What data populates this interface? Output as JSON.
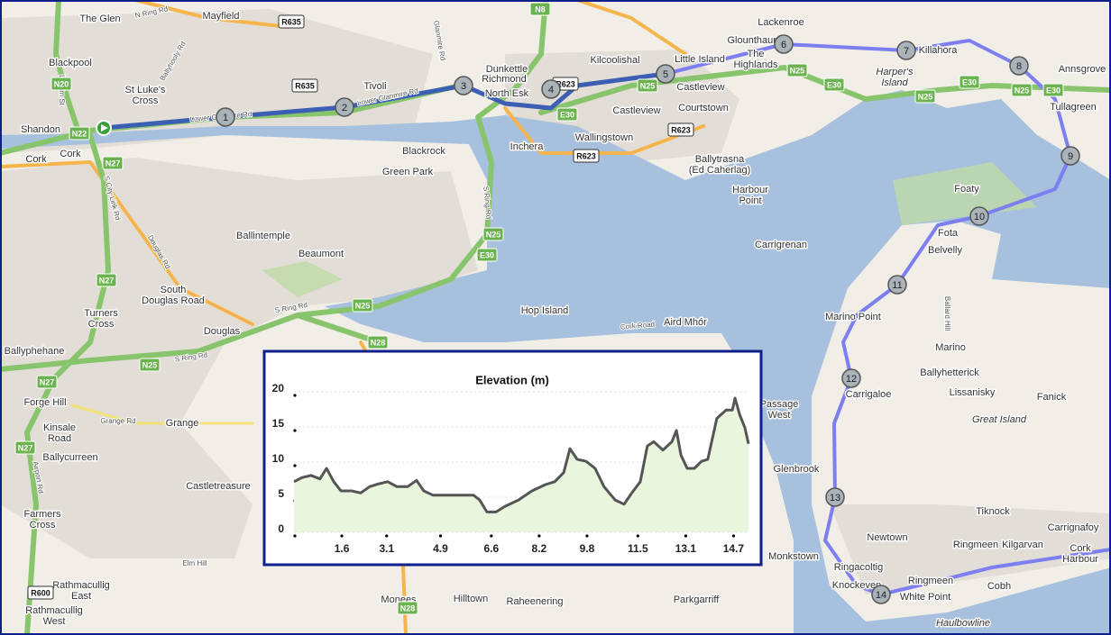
{
  "map": {
    "places": [
      [
        "The Glen"
      ],
      [
        "Mayfield"
      ],
      [
        "Blackpool"
      ],
      [
        "St Luke's",
        "Cross"
      ],
      [
        "Tivoli"
      ],
      [
        "Dunkettle"
      ],
      [
        "Richmond"
      ],
      [
        "North Esk"
      ],
      [
        "Kilcoolishal"
      ],
      [
        "Little Island"
      ],
      [
        "Glounthaune"
      ],
      [
        "Lackenroe"
      ],
      [
        "The",
        "Highlands"
      ],
      [
        "Castleview"
      ],
      [
        "Courtstown"
      ],
      [
        "Castleview"
      ],
      [
        "Wallingstown"
      ],
      [
        "Inchera"
      ],
      [
        "Killahora"
      ],
      [
        "Annsgrove"
      ],
      [
        "Tullagreen"
      ],
      [
        "Shandon"
      ],
      [
        "Cork"
      ],
      [
        "Cork"
      ],
      [
        "Blackrock"
      ],
      [
        "Green Park"
      ],
      [
        "Ballytrasna",
        "(Ed Caherlag)"
      ],
      [
        "Harbour",
        "Point"
      ],
      [
        "Foaty"
      ],
      [
        "Fota"
      ],
      [
        "Belvelly"
      ],
      [
        "Carrigrenan"
      ],
      [
        "Ballintemple"
      ],
      [
        "Beaumont"
      ],
      [
        "South",
        "Douglas Road"
      ],
      [
        "Turners",
        "Cross"
      ],
      [
        "Hop Island"
      ],
      [
        "Aird Mhór"
      ],
      [
        "Marino Point"
      ],
      [
        "Marino"
      ],
      [
        "Ballyhetterick"
      ],
      [
        "Lissanisky"
      ],
      [
        "Fanick"
      ],
      [
        "Great Island"
      ],
      [
        "Ballyphehane"
      ],
      [
        "Douglas"
      ],
      [
        "Forge Hill"
      ],
      [
        "Kinsale",
        "Road"
      ],
      [
        "Grange"
      ],
      [
        "Ballycurreen"
      ],
      [
        "Castletreasure"
      ],
      [
        "Farmers",
        "Cross"
      ],
      [
        "Passage",
        "West"
      ],
      [
        "Glenbrook"
      ],
      [
        "Carrigaloe"
      ],
      [
        "Monkstown"
      ],
      [
        "Tiknock"
      ],
      [
        "Carrignafoy"
      ],
      [
        "Newtown"
      ],
      [
        "Ringmeen"
      ],
      [
        "Kilgarvan"
      ],
      [
        "Cork",
        "Harbour"
      ],
      [
        "Ringacoltig"
      ],
      [
        "Knockeven"
      ],
      [
        "Ringmeen"
      ],
      [
        "Cobh"
      ],
      [
        "White Point"
      ],
      [
        "Haulbowline"
      ],
      [
        "Rathmacullig",
        "East"
      ],
      [
        "Rathmacullig",
        "West"
      ],
      [
        "Monees"
      ],
      [
        "Hilltown"
      ],
      [
        "Raheenering"
      ],
      [
        "Parkgarriff"
      ],
      [
        "Harper's",
        "Island"
      ]
    ],
    "road_labels": [
      "N Ring Rd",
      "Ballyhooly Rd",
      "Lower Glanmire Rd",
      "Lower Glanmire Rd",
      "Leitrim St",
      "S City Link Rd",
      "Douglas Rd",
      "S Ring Rd",
      "S Ring Rd",
      "Grange Rd",
      "S Ring Rd",
      "Airport Rd",
      "Glanmire Rd",
      "Cork Road",
      "Elm Hill",
      "Ballard Hill"
    ],
    "badges": [
      "N20",
      "N22",
      "N27",
      "N27",
      "N27",
      "N27",
      "N25",
      "E30",
      "N25",
      "N28",
      "N25",
      "N8",
      "N25",
      "E30",
      "N25",
      "E30",
      "N25",
      "E30",
      "N25",
      "E30",
      "N28",
      "R635",
      "R635",
      "R623",
      "R623",
      "R623",
      "R600"
    ],
    "waypoints": [
      "1",
      "2",
      "3",
      "4",
      "5",
      "6",
      "7",
      "8",
      "9",
      "10",
      "11",
      "12",
      "13",
      "14"
    ]
  },
  "chart_data": {
    "type": "area",
    "title": "Elevation (m)",
    "x": [
      0,
      0.27,
      0.57,
      0.87,
      1.09,
      1.33,
      1.57,
      1.93,
      2.23,
      2.53,
      2.83,
      3.14,
      3.44,
      3.8,
      4.1,
      4.34,
      4.64,
      5.1,
      5.55,
      6.0,
      6.21,
      6.45,
      6.76,
      7.06,
      7.51,
      7.96,
      8.41,
      8.72,
      9.02,
      9.23,
      9.47,
      9.77,
      10.07,
      10.37,
      10.74,
      11.04,
      11.28,
      11.58,
      11.82,
      12.03,
      12.34,
      12.64,
      12.79,
      12.94,
      13.15,
      13.39,
      13.63,
      13.84,
      14.14,
      14.45,
      14.66,
      14.75,
      14.9,
      15.08,
      15.2
    ],
    "values": [
      7.2,
      7.8,
      8.1,
      7.6,
      9.1,
      7.2,
      5.9,
      5.9,
      5.6,
      6.5,
      6.9,
      7.2,
      6.5,
      6.5,
      7.4,
      5.9,
      5.3,
      5.3,
      5.3,
      5.3,
      4.6,
      2.9,
      2.9,
      3.7,
      4.6,
      5.9,
      6.8,
      7.2,
      8.5,
      11.9,
      10.4,
      10.1,
      9.1,
      6.5,
      4.6,
      4.0,
      5.5,
      7.2,
      12.3,
      12.9,
      11.7,
      12.9,
      14.5,
      11.0,
      9.1,
      9.1,
      10.1,
      10.4,
      16.2,
      17.4,
      17.4,
      19.1,
      16.8,
      14.9,
      12.6
    ],
    "color": "#555555",
    "fill": "#e9f5dd",
    "xlim": [
      0,
      15.2
    ],
    "xticks": [
      1.6,
      3.1,
      4.9,
      6.6,
      8.2,
      9.8,
      11.5,
      13.1,
      14.7
    ],
    "ylim": [
      0,
      20
    ],
    "yticks": [
      0,
      5,
      10,
      15,
      20
    ],
    "grid": true
  }
}
